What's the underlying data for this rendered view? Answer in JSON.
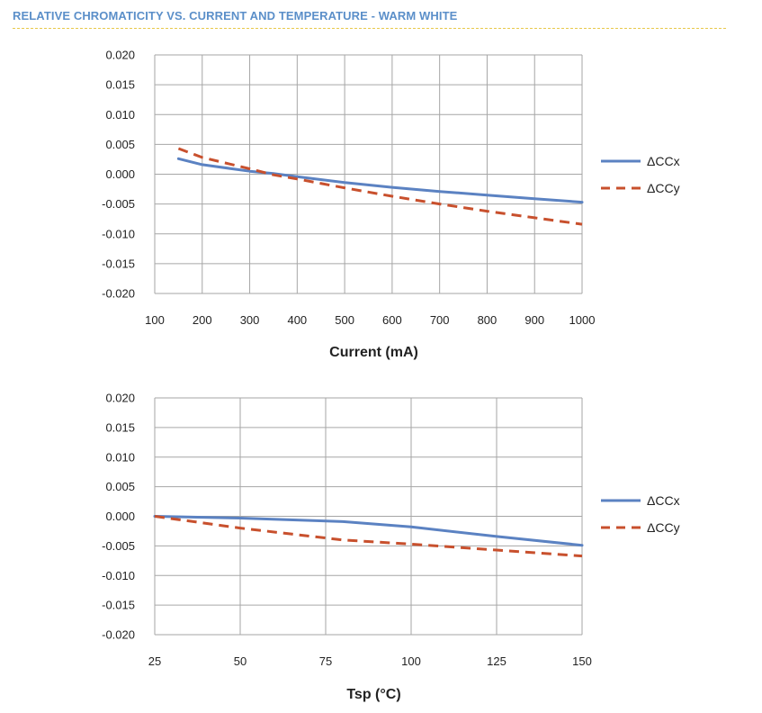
{
  "page": {
    "title": "RELATIVE CHROMATICITY VS. CURRENT AND TEMPERATURE - WARM WHITE"
  },
  "colors": {
    "title": "#5b8fc9",
    "title_rule": "#e8c84a",
    "grid": "#a6a6a6",
    "series_ccx": "#5b82c2",
    "series_ccy": "#c8502d"
  },
  "chart_data": [
    {
      "type": "line",
      "title": "",
      "xlabel": "Current (mA)",
      "ylabel": "",
      "xlim": [
        100,
        1000
      ],
      "ylim": [
        -0.02,
        0.02
      ],
      "x_ticks": [
        "100",
        "200",
        "300",
        "400",
        "500",
        "600",
        "700",
        "800",
        "900",
        "1000"
      ],
      "y_ticks": [
        "0.020",
        "0.015",
        "0.010",
        "0.005",
        "0.000",
        "-0.005",
        "-0.010",
        "-0.015",
        "-0.020"
      ],
      "grid": true,
      "legend_position": "right",
      "series": [
        {
          "name": "ΔCCx",
          "style": "solid",
          "x": [
            150,
            200,
            300,
            350,
            400,
            500,
            600,
            700,
            800,
            900,
            1000
          ],
          "y": [
            0.0026,
            0.0016,
            0.0005,
            0.0001,
            -0.0004,
            -0.0014,
            -0.0022,
            -0.0029,
            -0.0035,
            -0.0041,
            -0.0047
          ]
        },
        {
          "name": "ΔCCy",
          "style": "dashed",
          "x": [
            150,
            200,
            300,
            350,
            400,
            500,
            600,
            700,
            800,
            900,
            1000
          ],
          "y": [
            0.0043,
            0.0028,
            0.0009,
            -0.0001,
            -0.0008,
            -0.0023,
            -0.0037,
            -0.005,
            -0.0062,
            -0.0073,
            -0.0084
          ]
        }
      ]
    },
    {
      "type": "line",
      "title": "",
      "xlabel": "Tsp (°C)",
      "ylabel": "",
      "xlim": [
        25,
        150
      ],
      "ylim": [
        -0.02,
        0.02
      ],
      "x_ticks": [
        "25",
        "50",
        "75",
        "100",
        "125",
        "150"
      ],
      "y_ticks": [
        "0.020",
        "0.015",
        "0.010",
        "0.005",
        "0.000",
        "-0.005",
        "-0.010",
        "-0.015",
        "-0.020"
      ],
      "grid": true,
      "legend_position": "right",
      "series": [
        {
          "name": "ΔCCx",
          "style": "solid",
          "x": [
            25,
            50,
            80,
            100,
            125,
            150
          ],
          "y": [
            0.0,
            -0.0003,
            -0.0009,
            -0.0018,
            -0.0034,
            -0.0049
          ]
        },
        {
          "name": "ΔCCy",
          "style": "dashed",
          "x": [
            25,
            50,
            80,
            100,
            125,
            150
          ],
          "y": [
            0.0,
            -0.002,
            -0.004,
            -0.0047,
            -0.0057,
            -0.0067
          ]
        }
      ]
    }
  ]
}
